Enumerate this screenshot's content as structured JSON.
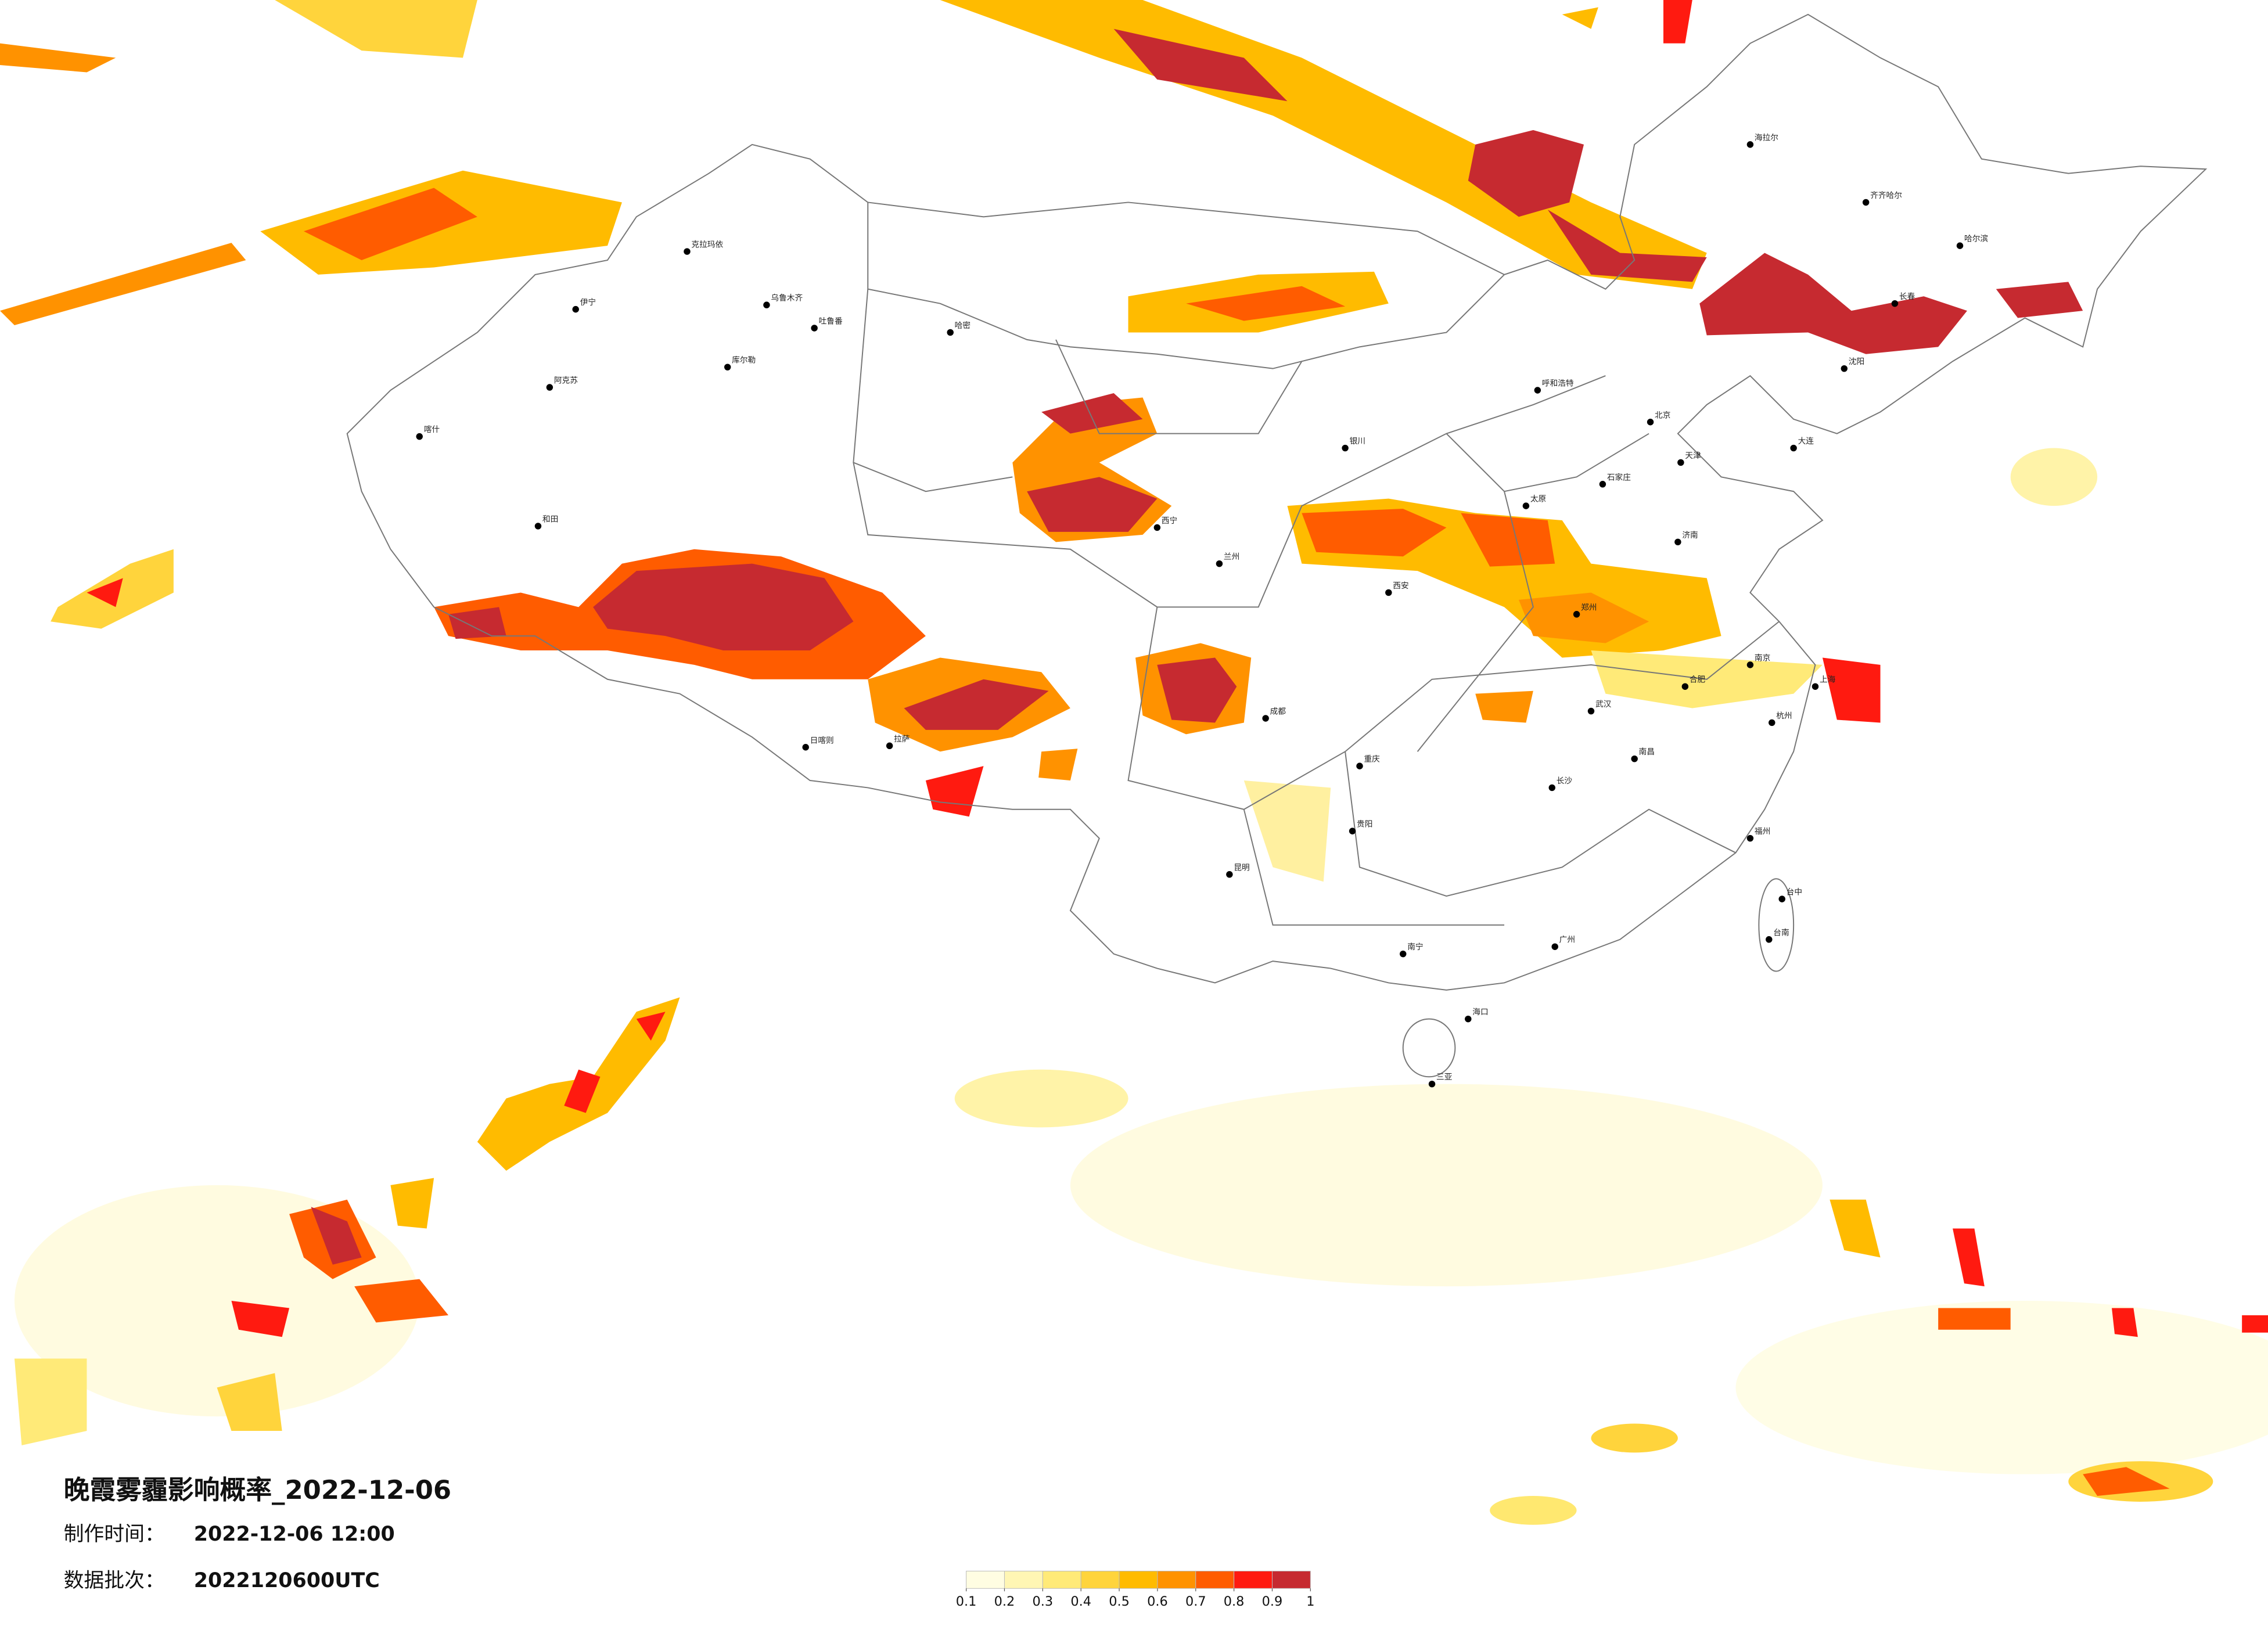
{
  "title": "晚霞雾霾影响概率_2022-12-06",
  "info": [
    {
      "label": "制作时间：",
      "value": "2022-12-06 12:00"
    },
    {
      "label": "数据批次：",
      "value": "2022120600UTC"
    }
  ],
  "colorbar": {
    "colors": [
      "#fffde2",
      "#fff6b4",
      "#ffea78",
      "#ffd43c",
      "#ffbb00",
      "#ff9200",
      "#ff5c00",
      "#ff1a10",
      "#c62a30"
    ],
    "ticks": [
      0.1,
      0.2,
      0.3,
      0.4,
      0.5,
      0.6,
      0.7,
      0.8,
      0.9,
      1
    ]
  },
  "cities": [
    "克拉玛依",
    "乌鲁木齐",
    "伊宁",
    "阿克苏",
    "喀什",
    "和田",
    "哈密",
    "库尔勒",
    "吐鲁番",
    "拉萨",
    "日喀则",
    "西宁",
    "兰州",
    "银川",
    "呼和浩特",
    "北京",
    "天津",
    "石家庄",
    "太原",
    "济南",
    "郑州",
    "西安",
    "成都",
    "重庆",
    "武汉",
    "南京",
    "上海",
    "杭州",
    "合肥",
    "长沙",
    "南昌",
    "福州",
    "贵阳",
    "昆明",
    "南宁",
    "广州",
    "海口",
    "台中",
    "台南",
    "哈尔滨",
    "长春",
    "沈阳",
    "大连",
    "齐齐哈尔",
    "海拉尔",
    "三亚"
  ]
}
